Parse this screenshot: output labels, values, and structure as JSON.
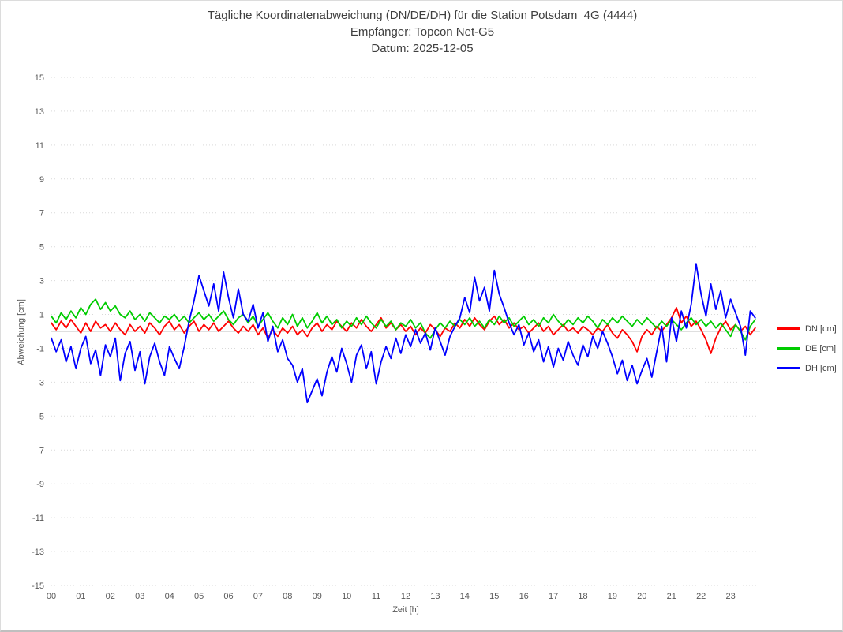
{
  "window": {
    "background": "#ffffff",
    "border_color": "#dcdcdc"
  },
  "chart_data": {
    "type": "line",
    "title": "Tägliche Koordinatenabweichung (DN/DE/DH) für die Station Potsdam_4G (4444)",
    "subtitle": "Empfänger: Topcon Net-G5",
    "date_label": "Datum: 2025-12-05",
    "xlabel": "Zeit [h]",
    "ylabel": "Abweichung [cm]",
    "xlim_hours": [
      0,
      24
    ],
    "ylim": [
      -15,
      15
    ],
    "y_ticks": [
      15,
      13,
      11,
      9,
      7,
      5,
      3,
      1,
      -1,
      -3,
      -5,
      -7,
      -9,
      -11,
      -13,
      -15
    ],
    "x_tick_labels": [
      "00",
      "01",
      "02",
      "03",
      "04",
      "05",
      "06",
      "07",
      "08",
      "09",
      "10",
      "11",
      "12",
      "13",
      "14",
      "15",
      "16",
      "17",
      "18",
      "19",
      "20",
      "21",
      "22",
      "23"
    ],
    "grid": "horizontal-dotted",
    "grid_color": "#d9d9d9",
    "zero_line": true,
    "zero_line_color": "#bfbfbf",
    "axis_text_color": "#595959",
    "title_color": "#3f3f3f",
    "legend_position": "right",
    "sample_interval_minutes": 10,
    "series": [
      {
        "name": "DN [cm]",
        "color": "#ff0000",
        "values": [
          0.5,
          0.1,
          0.6,
          0.2,
          0.7,
          0.3,
          -0.1,
          0.5,
          0.0,
          0.6,
          0.2,
          0.4,
          0.0,
          0.5,
          0.1,
          -0.2,
          0.4,
          0.0,
          0.3,
          -0.1,
          0.5,
          0.2,
          -0.2,
          0.3,
          0.6,
          0.1,
          0.4,
          -0.1,
          0.3,
          0.6,
          0.0,
          0.4,
          0.1,
          0.5,
          0.0,
          0.3,
          0.6,
          0.2,
          -0.1,
          0.3,
          0.0,
          0.4,
          -0.2,
          0.2,
          -0.4,
          0.1,
          -0.3,
          0.2,
          -0.1,
          0.3,
          -0.2,
          0.1,
          -0.3,
          0.2,
          0.5,
          0.0,
          0.4,
          0.1,
          0.6,
          0.3,
          0.0,
          0.5,
          0.2,
          0.7,
          0.3,
          0.0,
          0.4,
          0.8,
          0.2,
          0.5,
          0.1,
          0.4,
          0.0,
          0.3,
          -0.2,
          0.2,
          -0.1,
          0.4,
          0.1,
          -0.3,
          0.2,
          0.0,
          0.5,
          0.2,
          0.7,
          0.3,
          0.8,
          0.4,
          0.1,
          0.6,
          0.9,
          0.4,
          0.7,
          0.2,
          0.5,
          0.1,
          0.3,
          -0.1,
          0.2,
          0.5,
          0.0,
          0.3,
          -0.2,
          0.1,
          0.4,
          0.0,
          0.2,
          -0.1,
          0.3,
          0.1,
          -0.2,
          0.2,
          0.0,
          0.4,
          -0.1,
          -0.4,
          0.1,
          -0.2,
          -0.6,
          -1.2,
          -0.3,
          0.1,
          -0.2,
          0.3,
          0.0,
          0.4,
          0.8,
          1.4,
          0.5,
          0.9,
          0.3,
          0.6,
          0.1,
          -0.5,
          -1.3,
          -0.4,
          0.2,
          0.6,
          0.1,
          0.4,
          0.0,
          0.3,
          -0.2,
          0.2
        ]
      },
      {
        "name": "DE [cm]",
        "color": "#00cc00",
        "values": [
          0.9,
          0.5,
          1.1,
          0.7,
          1.2,
          0.8,
          1.4,
          1.0,
          1.6,
          1.9,
          1.3,
          1.7,
          1.2,
          1.5,
          1.0,
          0.8,
          1.2,
          0.7,
          1.0,
          0.6,
          1.1,
          0.8,
          0.5,
          0.9,
          0.7,
          1.0,
          0.6,
          0.9,
          0.5,
          0.8,
          1.1,
          0.7,
          1.0,
          0.6,
          0.9,
          1.2,
          0.7,
          0.4,
          0.8,
          1.0,
          0.5,
          0.9,
          0.3,
          0.7,
          1.1,
          0.6,
          0.2,
          0.8,
          0.4,
          1.0,
          0.3,
          0.8,
          0.2,
          0.6,
          1.1,
          0.5,
          0.9,
          0.4,
          0.7,
          0.2,
          0.6,
          0.3,
          0.8,
          0.4,
          0.9,
          0.5,
          0.2,
          0.7,
          0.3,
          0.6,
          0.1,
          0.5,
          0.3,
          0.7,
          0.2,
          0.5,
          -0.1,
          -0.4,
          0.1,
          0.5,
          0.2,
          0.6,
          0.3,
          0.7,
          0.4,
          0.8,
          0.3,
          0.6,
          0.2,
          0.7,
          0.4,
          0.9,
          0.5,
          0.8,
          0.3,
          0.6,
          0.9,
          0.4,
          0.7,
          0.3,
          0.8,
          0.5,
          1.0,
          0.6,
          0.3,
          0.7,
          0.4,
          0.8,
          0.5,
          0.9,
          0.6,
          0.2,
          0.7,
          0.4,
          0.8,
          0.5,
          0.9,
          0.6,
          0.3,
          0.7,
          0.4,
          0.8,
          0.5,
          0.2,
          0.6,
          0.3,
          0.7,
          0.4,
          0.1,
          0.5,
          0.8,
          0.4,
          0.7,
          0.3,
          0.6,
          0.2,
          0.5,
          0.1,
          -0.3,
          0.4,
          0.0,
          -0.5,
          0.3,
          0.7
        ]
      },
      {
        "name": "DH [cm]",
        "color": "#0000ff",
        "values": [
          -0.4,
          -1.2,
          -0.5,
          -1.8,
          -0.9,
          -2.2,
          -1.0,
          -0.3,
          -1.9,
          -1.1,
          -2.6,
          -0.8,
          -1.5,
          -0.4,
          -2.9,
          -1.3,
          -0.6,
          -2.3,
          -1.2,
          -3.1,
          -1.5,
          -0.7,
          -1.8,
          -2.6,
          -0.9,
          -1.6,
          -2.2,
          -0.9,
          0.6,
          1.8,
          3.3,
          2.4,
          1.5,
          2.8,
          1.2,
          3.5,
          2.0,
          0.8,
          2.5,
          1.0,
          0.6,
          1.6,
          0.2,
          1.1,
          -0.6,
          0.3,
          -1.2,
          -0.5,
          -1.6,
          -2.0,
          -3.0,
          -2.2,
          -4.2,
          -3.5,
          -2.8,
          -3.8,
          -2.4,
          -1.5,
          -2.4,
          -1.0,
          -1.9,
          -3.0,
          -1.4,
          -0.8,
          -2.2,
          -1.2,
          -3.1,
          -1.8,
          -0.9,
          -1.6,
          -0.4,
          -1.3,
          -0.2,
          -0.9,
          0.1,
          -0.7,
          -0.1,
          -1.1,
          0.2,
          -0.6,
          -1.4,
          -0.3,
          0.3,
          0.8,
          2.0,
          1.1,
          3.2,
          1.8,
          2.6,
          1.2,
          3.6,
          2.2,
          1.4,
          0.5,
          -0.2,
          0.4,
          -0.8,
          -0.1,
          -1.2,
          -0.5,
          -1.8,
          -0.9,
          -2.1,
          -1.0,
          -1.7,
          -0.6,
          -1.4,
          -2.0,
          -0.8,
          -1.5,
          -0.3,
          -1.0,
          0.0,
          -0.7,
          -1.5,
          -2.5,
          -1.7,
          -2.9,
          -2.0,
          -3.1,
          -2.3,
          -1.6,
          -2.7,
          -1.2,
          0.3,
          -1.8,
          0.8,
          -0.6,
          1.2,
          0.2,
          1.6,
          4.0,
          2.2,
          0.9,
          2.8,
          1.3,
          2.4,
          0.8,
          1.9,
          1.1,
          0.3,
          -1.4,
          1.2,
          0.8
        ]
      }
    ]
  }
}
